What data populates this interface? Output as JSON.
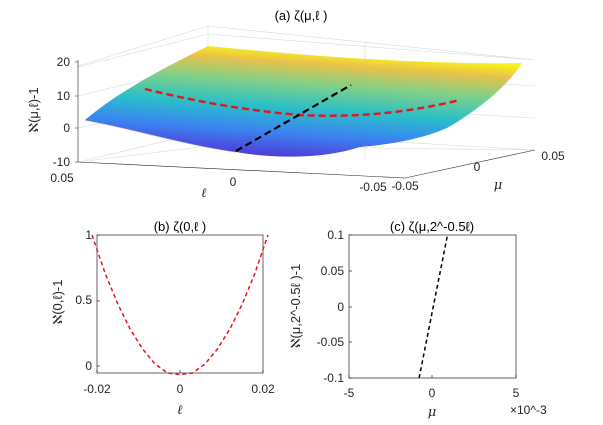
{
  "colors": {
    "red_dashed": "#e8141c",
    "black_dashed": "#000000",
    "axis": "#262626"
  },
  "chart_data": [
    {
      "id": "a",
      "type": "surface3d",
      "title": "(a) ζ(μ,ℓ )",
      "zlabel": "ℵ(μ,ℓ)-1",
      "xlabel": "ℓ",
      "ylabel": "μ",
      "x_ticks": [
        "0.05",
        "0",
        "-0.05"
      ],
      "y_ticks": [
        "-0.05",
        "0",
        "0.05"
      ],
      "z_ticks": [
        "20",
        "10",
        "0",
        "-10"
      ],
      "xlim": [
        -0.05,
        0.05
      ],
      "ylim": [
        -0.05,
        0.05
      ],
      "zlim": [
        -10,
        20
      ],
      "surface_colormap": "parula",
      "overlays": [
        {
          "name": "ζ(0,ℓ)",
          "style": "red dashed"
        },
        {
          "name": "ζ(μ,2^-0.5 ℓ)",
          "style": "black dashed"
        }
      ]
    },
    {
      "id": "b",
      "type": "line",
      "title": "(b) ζ(0,ℓ )",
      "xlabel": "ℓ",
      "ylabel": "ℵ(0,ℓ)-1",
      "x_ticks": [
        "-0.02",
        "0",
        "0.02"
      ],
      "y_ticks": [
        "1",
        "0.5",
        "0"
      ],
      "xlim": [
        -0.02,
        0.02
      ],
      "ylim": [
        -0.05,
        1
      ],
      "series": [
        {
          "name": "ζ(0,ℓ)",
          "style": "red dashed",
          "x": [
            -0.0212,
            -0.018,
            -0.015,
            -0.012,
            -0.009,
            -0.006,
            -0.003,
            0,
            0.003,
            0.006,
            0.009,
            0.012,
            0.015,
            0.018,
            0.0212
          ],
          "y": [
            1.0,
            0.705,
            0.475,
            0.283,
            0.132,
            0.018,
            -0.05,
            -0.062,
            -0.05,
            0.018,
            0.132,
            0.283,
            0.475,
            0.705,
            1.0
          ]
        }
      ]
    },
    {
      "id": "c",
      "type": "line",
      "title": "(c) ζ(μ,2^-0.5ℓ)",
      "xlabel": "μ",
      "ylabel": "ℵ(μ,2^-0.5ℓ )-1",
      "x_ticks": [
        "-5",
        "0",
        "5"
      ],
      "y_ticks": [
        "0.1",
        "0.05",
        "0",
        "-0.05",
        "-0.1"
      ],
      "x_multiplier": "×10^-3",
      "xlim": [
        -0.005,
        0.005
      ],
      "ylim": [
        -0.1,
        0.1
      ],
      "series": [
        {
          "name": "ζ(μ,2^-0.5ℓ)",
          "style": "black dashed",
          "x": [
            -0.0008,
            0.0009
          ],
          "y": [
            -0.1,
            0.1
          ]
        }
      ]
    }
  ]
}
